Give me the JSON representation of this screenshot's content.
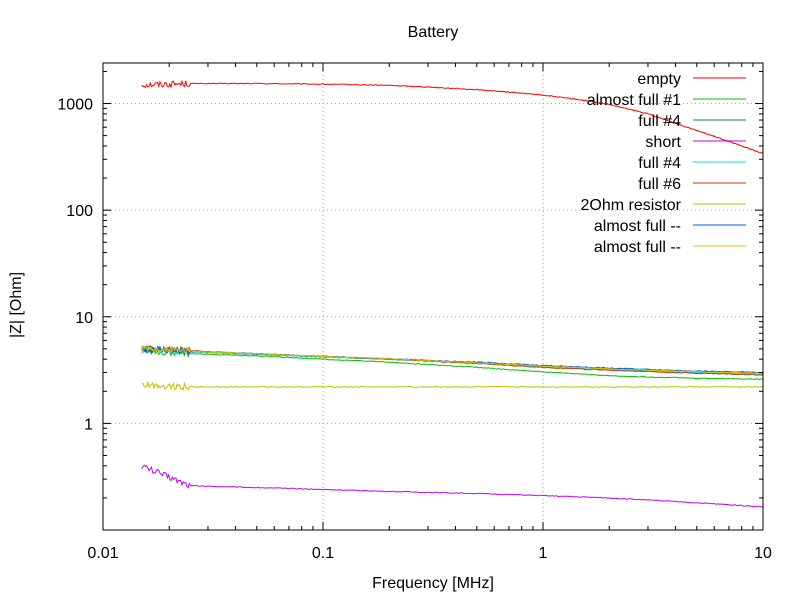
{
  "chart_data": {
    "type": "line",
    "title": "Battery",
    "xlabel": "Frequency [MHz]",
    "ylabel": "|Z| [Ohm]",
    "x_scale": "log",
    "y_scale": "log",
    "xlim": [
      0.01,
      10
    ],
    "ylim": [
      0.1,
      2400
    ],
    "x_ticks": [
      {
        "value": 0.01,
        "label": "0.01"
      },
      {
        "value": 0.1,
        "label": "0.1"
      },
      {
        "value": 1,
        "label": "1"
      },
      {
        "value": 10,
        "label": "10"
      }
    ],
    "y_ticks": [
      {
        "value": 1,
        "label": "1"
      },
      {
        "value": 10,
        "label": "10"
      },
      {
        "value": 100,
        "label": "100"
      },
      {
        "value": 1000,
        "label": "1000"
      }
    ],
    "grid": true,
    "legend_position": "top-right",
    "series": [
      {
        "name": "empty",
        "color": "#ff0000",
        "x": [
          0.015,
          0.025,
          0.05,
          0.1,
          0.2,
          0.3,
          0.5,
          0.7,
          1,
          1.5,
          2,
          3,
          5,
          7,
          10
        ],
        "y": [
          1500,
          1540,
          1540,
          1520,
          1480,
          1430,
          1350,
          1280,
          1200,
          1080,
          980,
          800,
          560,
          440,
          340
        ]
      },
      {
        "name": "almost full #1",
        "color": "#00c000",
        "x": [
          0.015,
          0.025,
          0.05,
          0.1,
          0.2,
          0.5,
          1,
          2,
          5,
          10
        ],
        "y": [
          4.8,
          4.5,
          4.3,
          4.0,
          3.75,
          3.35,
          3.05,
          2.8,
          2.65,
          2.6
        ]
      },
      {
        "name": "full #4",
        "color": "#008080",
        "x": [
          0.015,
          0.025,
          0.05,
          0.1,
          0.2,
          0.5,
          1,
          2,
          5,
          10
        ],
        "y": [
          5.0,
          4.7,
          4.45,
          4.2,
          4.0,
          3.7,
          3.45,
          3.25,
          3.05,
          2.95
        ]
      },
      {
        "name": "short",
        "color": "#c000ff",
        "x": [
          0.015,
          0.025,
          0.05,
          0.1,
          0.2,
          0.5,
          1,
          2,
          5,
          10
        ],
        "y": [
          0.4,
          0.26,
          0.25,
          0.24,
          0.23,
          0.22,
          0.21,
          0.2,
          0.18,
          0.165
        ]
      },
      {
        "name": "full #4",
        "color": "#00e0e0",
        "x": [
          0.015,
          0.025,
          0.05,
          0.1,
          0.2,
          0.5,
          1,
          2,
          5,
          10
        ],
        "y": [
          5.0,
          4.7,
          4.45,
          4.2,
          4.0,
          3.65,
          3.4,
          3.2,
          3.0,
          2.9
        ]
      },
      {
        "name": "full #6",
        "color": "#c04000",
        "x": [
          0.015,
          0.025,
          0.05,
          0.1,
          0.2,
          0.5,
          1,
          2,
          5,
          10
        ],
        "y": [
          5.1,
          4.8,
          4.5,
          4.25,
          4.0,
          3.65,
          3.35,
          3.15,
          2.95,
          2.85
        ]
      },
      {
        "name": "2Ohm resistor",
        "color": "#c0c000",
        "x": [
          0.015,
          0.025,
          0.05,
          0.1,
          0.2,
          0.5,
          1,
          2,
          5,
          10
        ],
        "y": [
          2.3,
          2.2,
          2.2,
          2.2,
          2.2,
          2.2,
          2.2,
          2.2,
          2.2,
          2.2
        ]
      },
      {
        "name": "almost full --",
        "color": "#0060e0",
        "x": [
          0.015,
          0.025,
          0.05,
          0.1,
          0.2,
          0.5,
          1,
          2,
          5,
          10
        ],
        "y": [
          5.0,
          4.75,
          4.5,
          4.25,
          4.05,
          3.75,
          3.5,
          3.3,
          3.1,
          3.0
        ]
      },
      {
        "name": "almost full --",
        "color": "#e0c000",
        "x": [
          0.015,
          0.025,
          0.05,
          0.1,
          0.2,
          0.5,
          1,
          2,
          5,
          10
        ],
        "y": [
          5.0,
          4.75,
          4.5,
          4.25,
          4.05,
          3.7,
          3.45,
          3.25,
          3.05,
          2.95
        ]
      }
    ]
  }
}
